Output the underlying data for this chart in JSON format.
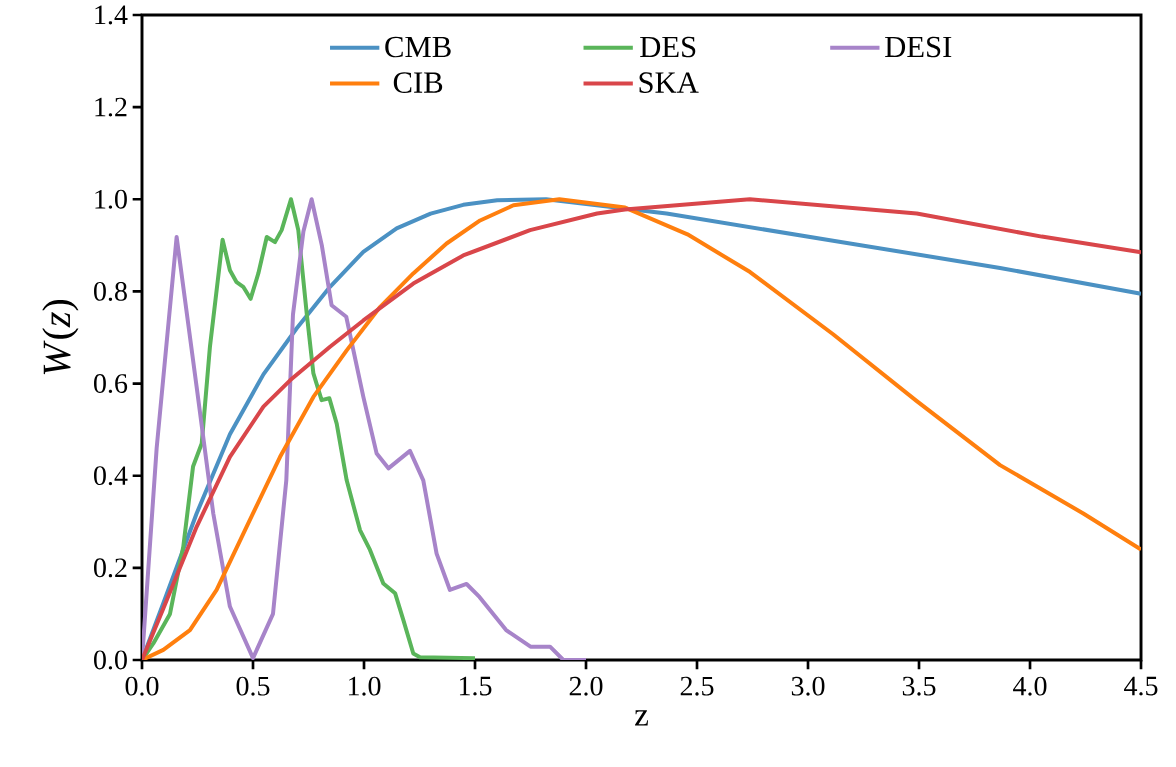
{
  "chart_data": {
    "type": "line",
    "xlabel": "z",
    "ylabel": "*W*(*z*)",
    "xlim": [
      0,
      4.5
    ],
    "ylim": [
      0,
      1.4
    ],
    "xticks": [
      {
        "value": 0,
        "label": "0.0"
      },
      {
        "value": 0.5,
        "label": "0.5"
      },
      {
        "value": 1,
        "label": "1.0"
      },
      {
        "value": 1.5,
        "label": "1.5"
      },
      {
        "value": 2,
        "label": "2.0"
      },
      {
        "value": 2.5,
        "label": "2.5"
      },
      {
        "value": 3,
        "label": "3.0"
      },
      {
        "value": 3.5,
        "label": "3.5"
      },
      {
        "value": 4,
        "label": "4.0"
      },
      {
        "value": 4.5,
        "label": "4.5"
      }
    ],
    "yticks": [
      {
        "value": 0,
        "label": "0.0"
      },
      {
        "value": 0.2,
        "label": "0.2"
      },
      {
        "value": 0.4,
        "label": "0.4"
      },
      {
        "value": 0.6,
        "label": "0.6"
      },
      {
        "value": 0.8,
        "label": "0.8"
      },
      {
        "value": 1,
        "label": "1.0"
      },
      {
        "value": 1.2,
        "label": "1.2"
      },
      {
        "value": 1.4,
        "label": "1.4"
      }
    ],
    "grid": false,
    "legend": "top",
    "marker": "none",
    "line_style": "solid",
    "series": [
      {
        "name": "CMB",
        "color": "#4b91c3",
        "x": [
          0,
          0.096,
          0.246,
          0.396,
          0.547,
          0.697,
          0.847,
          0.997,
          1.147,
          1.3,
          1.447,
          1.6,
          1.82,
          2.363,
          3.113,
          3.865,
          4.5
        ],
        "values": [
          0,
          0.123,
          0.318,
          0.49,
          0.62,
          0.72,
          0.81,
          0.886,
          0.937,
          0.969,
          0.988,
          0.998,
          1.0,
          0.969,
          0.91,
          0.851,
          0.795
        ]
      },
      {
        "name": "DES",
        "color": "#5ab55a",
        "x": [
          0,
          0.051,
          0.126,
          0.186,
          0.23,
          0.269,
          0.306,
          0.363,
          0.396,
          0.426,
          0.456,
          0.489,
          0.524,
          0.562,
          0.599,
          0.629,
          0.671,
          0.704,
          0.742,
          0.772,
          0.809,
          0.844,
          0.877,
          0.922,
          0.982,
          1.027,
          1.087,
          1.14,
          1.177,
          1.222,
          1.252,
          1.5
        ],
        "values": [
          0,
          0.036,
          0.1,
          0.246,
          0.42,
          0.47,
          0.68,
          0.912,
          0.846,
          0.82,
          0.81,
          0.784,
          0.839,
          0.918,
          0.907,
          0.933,
          1.0,
          0.933,
          0.752,
          0.622,
          0.564,
          0.568,
          0.513,
          0.39,
          0.282,
          0.239,
          0.166,
          0.145,
          0.087,
          0.014,
          0.006,
          0.004
        ]
      },
      {
        "name": "DESI",
        "color": "#a784c9",
        "x": [
          0,
          0.066,
          0.156,
          0.246,
          0.321,
          0.396,
          0.5,
          0.59,
          0.65,
          0.68,
          0.727,
          0.764,
          0.81,
          0.854,
          0.92,
          0.997,
          1.057,
          1.11,
          1.207,
          1.267,
          1.327,
          1.387,
          1.462,
          1.52,
          1.64,
          1.75,
          1.838,
          1.898,
          2.0
        ],
        "values": [
          0,
          0.46,
          0.918,
          0.593,
          0.318,
          0.116,
          0.004,
          0.1,
          0.39,
          0.75,
          0.93,
          1.0,
          0.9,
          0.77,
          0.745,
          0.571,
          0.448,
          0.416,
          0.454,
          0.39,
          0.231,
          0.152,
          0.165,
          0.137,
          0.065,
          0.029,
          0.029,
          0,
          0
        ]
      },
      {
        "name": "CIB",
        "color": "#ff7f0e",
        "x": [
          0,
          0.096,
          0.216,
          0.336,
          0.471,
          0.622,
          0.772,
          0.922,
          1.072,
          1.222,
          1.372,
          1.523,
          1.673,
          1.88,
          2.176,
          2.457,
          2.739,
          3.113,
          3.49,
          3.865,
          4.24,
          4.5
        ],
        "values": [
          0,
          0.022,
          0.065,
          0.152,
          0.289,
          0.441,
          0.571,
          0.672,
          0.766,
          0.839,
          0.904,
          0.954,
          0.987,
          1.0,
          0.982,
          0.924,
          0.842,
          0.707,
          0.562,
          0.423,
          0.318,
          0.24
        ]
      },
      {
        "name": "SKA",
        "color": "#d9464a",
        "x": [
          0,
          0.096,
          0.246,
          0.396,
          0.547,
          0.667,
          0.847,
          0.997,
          1.222,
          1.447,
          1.748,
          2.05,
          2.175,
          2.738,
          3.49,
          4.053,
          4.5
        ],
        "values": [
          0,
          0.112,
          0.289,
          0.441,
          0.55,
          0.607,
          0.68,
          0.737,
          0.817,
          0.878,
          0.933,
          0.969,
          0.978,
          1.0,
          0.969,
          0.919,
          0.885
        ]
      }
    ]
  }
}
